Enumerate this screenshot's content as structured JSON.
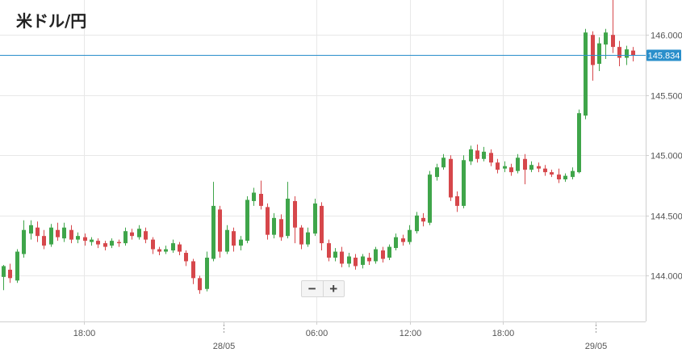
{
  "title": "米ドル/円",
  "current_price_label": "145.834",
  "zoom": {
    "minus": "−",
    "plus": "+"
  },
  "colors": {
    "up": "#3fa54a",
    "down": "#d6474b",
    "grid": "#e8e8e8",
    "axis": "#cfcfcf",
    "price_line": "#2a8fcb",
    "label_bg": "#2a8fcb"
  },
  "chart_data": {
    "type": "candlestick",
    "title": "米ドル/円",
    "y_ticks": [
      "146.000",
      "145.500",
      "145.000",
      "144.500",
      "144.000"
    ],
    "y_tick_values": [
      146.0,
      145.5,
      145.0,
      144.5,
      144.0
    ],
    "ylim": [
      143.62,
      146.29
    ],
    "x_tick_labels": [
      {
        "label": "18:00",
        "hour": 18
      },
      {
        "label": "28/05",
        "hour": 27,
        "date_line": true
      },
      {
        "label": "06:00",
        "hour": 33
      },
      {
        "label": "12:00",
        "hour": 39
      },
      {
        "label": "18:00",
        "hour": 45
      },
      {
        "label": "29/05",
        "hour": 51,
        "date_line": true
      }
    ],
    "x_range_hours": [
      12.6,
      54.2
    ],
    "current_price": 145.834,
    "candles": [
      [
        143.99,
        144.08,
        144.09,
        143.88
      ],
      [
        144.05,
        143.98,
        144.1,
        143.94
      ],
      [
        143.96,
        144.2,
        144.22,
        143.94
      ],
      [
        144.18,
        144.38,
        144.46,
        144.15
      ],
      [
        144.35,
        144.42,
        144.46,
        144.3
      ],
      [
        144.4,
        144.33,
        144.45,
        144.28
      ],
      [
        144.33,
        144.25,
        144.38,
        144.22
      ],
      [
        144.26,
        144.4,
        144.43,
        144.24
      ],
      [
        144.38,
        144.32,
        144.44,
        144.29
      ],
      [
        144.31,
        144.4,
        144.44,
        144.28
      ],
      [
        144.38,
        144.3,
        144.42,
        144.27
      ],
      [
        144.3,
        144.33,
        144.36,
        144.27
      ],
      [
        144.32,
        144.29,
        144.35,
        144.25
      ],
      [
        144.28,
        144.3,
        144.32,
        144.25
      ],
      [
        144.29,
        144.26,
        144.31,
        144.23
      ],
      [
        144.27,
        144.24,
        144.29,
        144.21
      ],
      [
        144.25,
        144.29,
        144.31,
        144.23
      ],
      [
        144.28,
        144.27,
        144.3,
        144.24
      ],
      [
        144.27,
        144.37,
        144.4,
        144.25
      ],
      [
        144.36,
        144.33,
        144.39,
        144.3
      ],
      [
        144.32,
        144.39,
        144.42,
        144.3
      ],
      [
        144.37,
        144.3,
        144.4,
        144.27
      ],
      [
        144.3,
        144.22,
        144.32,
        144.18
      ],
      [
        144.22,
        144.2,
        144.24,
        144.17
      ],
      [
        144.2,
        144.22,
        144.25,
        144.18
      ],
      [
        144.21,
        144.27,
        144.3,
        144.19
      ],
      [
        144.26,
        144.2,
        144.28,
        144.17
      ],
      [
        144.19,
        144.12,
        144.21,
        144.08
      ],
      [
        144.12,
        143.98,
        144.14,
        143.93
      ],
      [
        143.98,
        143.88,
        144.0,
        143.85
      ],
      [
        143.89,
        144.15,
        144.2,
        143.87
      ],
      [
        144.14,
        144.58,
        144.78,
        144.12
      ],
      [
        144.55,
        144.2,
        144.58,
        144.15
      ],
      [
        144.2,
        144.38,
        144.42,
        144.18
      ],
      [
        144.37,
        144.25,
        144.4,
        144.2
      ],
      [
        144.25,
        144.3,
        144.33,
        144.21
      ],
      [
        144.29,
        144.63,
        144.66,
        144.27
      ],
      [
        144.62,
        144.69,
        144.73,
        144.58
      ],
      [
        144.68,
        144.58,
        144.79,
        144.55
      ],
      [
        144.57,
        144.34,
        144.6,
        144.3
      ],
      [
        144.34,
        144.48,
        144.52,
        144.31
      ],
      [
        144.47,
        144.32,
        144.51,
        144.29
      ],
      [
        144.33,
        144.64,
        144.78,
        144.31
      ],
      [
        144.62,
        144.4,
        144.66,
        144.27
      ],
      [
        144.4,
        144.26,
        144.42,
        144.22
      ],
      [
        144.26,
        144.36,
        144.4,
        144.24
      ],
      [
        144.35,
        144.6,
        144.64,
        144.33
      ],
      [
        144.58,
        144.27,
        144.61,
        144.21
      ],
      [
        144.27,
        144.15,
        144.3,
        144.12
      ],
      [
        144.15,
        144.2,
        144.23,
        144.12
      ],
      [
        144.2,
        144.1,
        144.24,
        144.07
      ],
      [
        144.1,
        144.16,
        144.19,
        144.07
      ],
      [
        144.15,
        144.08,
        144.18,
        144.05
      ],
      [
        144.09,
        144.16,
        144.18,
        144.06
      ],
      [
        144.15,
        144.12,
        144.19,
        144.09
      ],
      [
        144.12,
        144.22,
        144.24,
        144.1
      ],
      [
        144.21,
        144.14,
        144.24,
        144.11
      ],
      [
        144.15,
        144.24,
        144.26,
        144.13
      ],
      [
        144.23,
        144.32,
        144.35,
        144.21
      ],
      [
        144.31,
        144.28,
        144.34,
        144.25
      ],
      [
        144.28,
        144.38,
        144.42,
        144.26
      ],
      [
        144.37,
        144.5,
        144.53,
        144.35
      ],
      [
        144.48,
        144.45,
        144.52,
        144.41
      ],
      [
        144.44,
        144.84,
        144.87,
        144.42
      ],
      [
        144.82,
        144.9,
        144.93,
        144.79
      ],
      [
        144.9,
        144.98,
        145.01,
        144.88
      ],
      [
        144.97,
        144.65,
        145.0,
        144.62
      ],
      [
        144.66,
        144.58,
        144.7,
        144.53
      ],
      [
        144.58,
        144.96,
        145.0,
        144.56
      ],
      [
        144.95,
        145.05,
        145.08,
        144.92
      ],
      [
        145.04,
        144.97,
        145.09,
        144.94
      ],
      [
        144.97,
        145.03,
        145.07,
        144.95
      ],
      [
        145.02,
        144.94,
        145.05,
        144.91
      ],
      [
        144.94,
        144.88,
        144.97,
        144.85
      ],
      [
        144.89,
        144.91,
        144.95,
        144.86
      ],
      [
        144.9,
        144.86,
        144.93,
        144.83
      ],
      [
        144.87,
        144.98,
        145.01,
        144.85
      ],
      [
        144.97,
        144.88,
        145.01,
        144.76
      ],
      [
        144.88,
        144.92,
        144.95,
        144.86
      ],
      [
        144.91,
        144.89,
        144.94,
        144.86
      ],
      [
        144.89,
        144.86,
        144.92,
        144.83
      ],
      [
        144.86,
        144.84,
        144.88,
        144.82
      ],
      [
        144.84,
        144.8,
        144.89,
        144.77
      ],
      [
        144.8,
        144.83,
        144.85,
        144.78
      ],
      [
        144.82,
        144.87,
        144.9,
        144.8
      ],
      [
        144.86,
        145.35,
        145.38,
        144.85
      ],
      [
        145.33,
        146.02,
        146.05,
        145.3
      ],
      [
        146.0,
        145.75,
        146.03,
        145.62
      ],
      [
        145.76,
        145.93,
        145.98,
        145.7
      ],
      [
        145.92,
        146.02,
        146.05,
        145.8
      ],
      [
        146.0,
        145.9,
        146.29,
        145.85
      ],
      [
        145.9,
        145.81,
        145.95,
        145.74
      ],
      [
        145.81,
        145.88,
        145.91,
        145.75
      ],
      [
        145.87,
        145.83,
        145.9,
        145.78
      ]
    ]
  }
}
